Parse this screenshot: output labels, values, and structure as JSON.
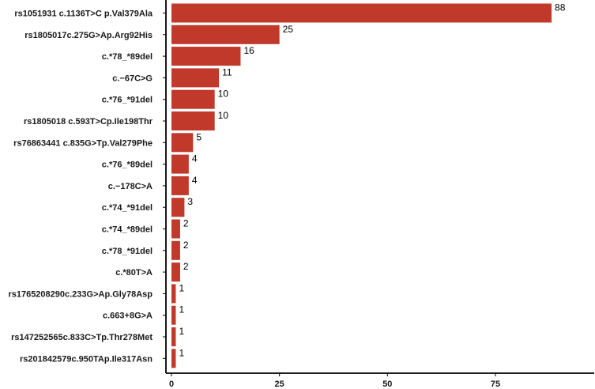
{
  "chart_data": {
    "type": "bar",
    "orientation": "horizontal",
    "categories": [
      "rs1051931 c.1136T>C p.Val379Ala",
      "rs1805017c.275G>Ap.Arg92His",
      "c.*78_*89del",
      "c.−67C>G",
      "c.*76_*91del",
      "rs1805018 c.593T>Cp.Ile198Thr",
      "rs76863441 c.835G>Tp.Val279Phe",
      "c.*76_*89del",
      "c.−178C>A",
      "c.*74_*91del",
      "c.*74_*89del",
      "c.*78_*91del",
      "c.*80T>A",
      "rs1765208290c.233G>Ap.Gly78Asp",
      "c.663+8G>A",
      "rs147252565c.833C>Tp.Thr278Met",
      "rs201842579c.950TAp.Ile317Asn"
    ],
    "values": [
      88,
      25,
      16,
      11,
      10,
      10,
      5,
      4,
      4,
      3,
      2,
      2,
      2,
      1,
      1,
      1,
      1
    ],
    "xlim": [
      0,
      92
    ],
    "xticks": [
      0,
      25,
      50,
      75
    ],
    "bar_color": "#c0392b",
    "grid": false
  }
}
